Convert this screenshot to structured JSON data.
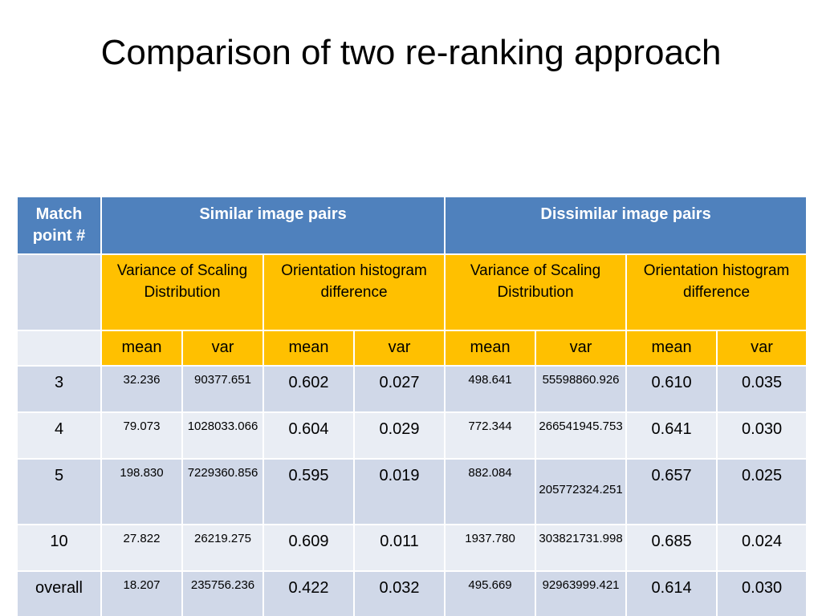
{
  "title": "Comparison of two re-ranking approach",
  "table": {
    "header": {
      "match_point": "Match point #",
      "similar": "Similar image pairs",
      "dissimilar": "Dissimilar image pairs"
    },
    "subheader": {
      "variance": "Variance of Scaling Distribution",
      "orientation": "Orientation histogram difference"
    },
    "stats": {
      "mean": "mean",
      "var": "var"
    },
    "rows": [
      {
        "label": "3",
        "sim_scale_mean": "32.236",
        "sim_scale_var": "90377.651",
        "sim_orient_mean": "0.602",
        "sim_orient_var": "0.027",
        "dis_scale_mean": "498.641",
        "dis_scale_var": "55598860.926",
        "dis_orient_mean": "0.610",
        "dis_orient_var": "0.035"
      },
      {
        "label": "4",
        "sim_scale_mean": "79.073",
        "sim_scale_var": "1028033.066",
        "sim_orient_mean": "0.604",
        "sim_orient_var": "0.029",
        "dis_scale_mean": "772.344",
        "dis_scale_var": "266541945.753",
        "dis_orient_mean": "0.641",
        "dis_orient_var": "0.030"
      },
      {
        "label": "5",
        "sim_scale_mean": "198.830",
        "sim_scale_var": "7229360.856",
        "sim_orient_mean": "0.595",
        "sim_orient_var": "0.019",
        "dis_scale_mean": "882.084",
        "dis_scale_var": "205772324.251",
        "dis_orient_mean": "0.657",
        "dis_orient_var": "0.025"
      },
      {
        "label": "10",
        "sim_scale_mean": "27.822",
        "sim_scale_var": "26219.275",
        "sim_orient_mean": "0.609",
        "sim_orient_var": "0.011",
        "dis_scale_mean": "1937.780",
        "dis_scale_var": "303821731.998",
        "dis_orient_mean": "0.685",
        "dis_orient_var": "0.024"
      },
      {
        "label": "overall",
        "sim_scale_mean": "18.207",
        "sim_scale_var": "235756.236",
        "sim_orient_mean": "0.422",
        "sim_orient_var": "0.032",
        "dis_scale_mean": "495.669",
        "dis_scale_var": "92963999.421",
        "dis_orient_mean": "0.614",
        "dis_orient_var": "0.030"
      }
    ]
  },
  "colors": {
    "header_blue": "#4f81bd",
    "subheader_gold": "#ffc000",
    "row_dark": "#d0d8e8",
    "row_light": "#e9edf4"
  }
}
